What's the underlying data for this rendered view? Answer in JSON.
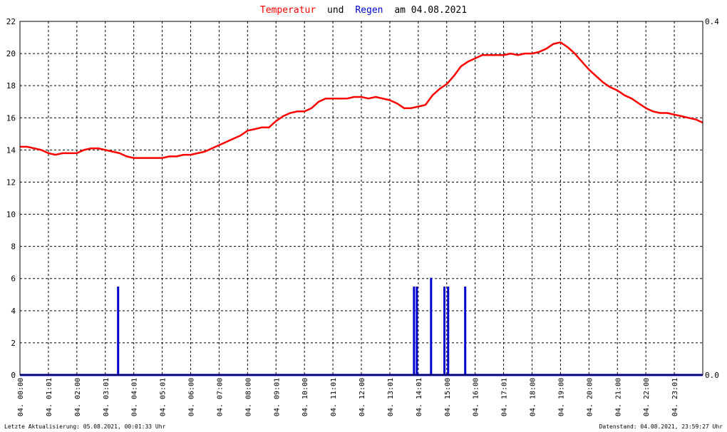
{
  "chart_data": {
    "type": "line",
    "title_parts": [
      {
        "text": "Temperatur",
        "color": "#ff0000"
      },
      {
        "text": "und",
        "color": "#000000"
      },
      {
        "text": "Regen",
        "color": "#0000cc"
      },
      {
        "text": "am 04.08.2021",
        "color": "#000000"
      }
    ],
    "y_left": {
      "min": 0,
      "max": 22,
      "ticks": [
        "0",
        "2",
        "4",
        "6",
        "8",
        "10",
        "12",
        "14",
        "16",
        "18",
        "20",
        "22"
      ]
    },
    "y_right": {
      "min": 0,
      "max": 0.4,
      "ticks": [
        "0.0",
        "0.4"
      ]
    },
    "x_range_hours": [
      0,
      24
    ],
    "x_tick_labels": [
      "04. 00:00",
      "04. 01:01",
      "04. 02:00",
      "04. 03:01",
      "04. 04:01",
      "04. 05:01",
      "04. 06:00",
      "04. 07:00",
      "04. 08:00",
      "04. 09:01",
      "04. 10:00",
      "04. 11:01",
      "04. 12:00",
      "04. 13:01",
      "04. 14:01",
      "04. 15:00",
      "04. 16:00",
      "04. 17:01",
      "04. 18:00",
      "04. 19:00",
      "04. 20:00",
      "04. 21:00",
      "04. 22:00",
      "04. 23:01"
    ],
    "grid": true,
    "series": [
      {
        "name": "Temperatur",
        "axis": "left",
        "color": "#ff0000",
        "x": [
          0.0,
          0.25,
          0.5,
          0.75,
          1.0,
          1.25,
          1.5,
          1.75,
          2.0,
          2.25,
          2.5,
          2.75,
          3.0,
          3.25,
          3.5,
          3.75,
          4.0,
          4.25,
          4.5,
          4.75,
          5.0,
          5.25,
          5.5,
          5.75,
          6.0,
          6.25,
          6.5,
          6.75,
          7.0,
          7.25,
          7.5,
          7.75,
          8.0,
          8.25,
          8.5,
          8.75,
          9.0,
          9.25,
          9.5,
          9.75,
          10.0,
          10.25,
          10.5,
          10.75,
          11.0,
          11.25,
          11.5,
          11.75,
          12.0,
          12.25,
          12.5,
          12.75,
          13.0,
          13.25,
          13.5,
          13.75,
          14.0,
          14.25,
          14.5,
          14.75,
          15.0,
          15.25,
          15.5,
          15.75,
          16.0,
          16.25,
          16.5,
          16.75,
          17.0,
          17.25,
          17.5,
          17.75,
          18.0,
          18.25,
          18.5,
          18.75,
          19.0,
          19.25,
          19.5,
          19.75,
          20.0,
          20.25,
          20.5,
          20.75,
          21.0,
          21.25,
          21.5,
          21.75,
          22.0,
          22.25,
          22.5,
          22.75,
          23.0,
          23.25,
          23.5,
          23.75,
          24.0
        ],
        "values": [
          14.2,
          14.2,
          14.1,
          14.0,
          13.8,
          13.7,
          13.8,
          13.8,
          13.8,
          14.0,
          14.1,
          14.1,
          14.0,
          13.9,
          13.8,
          13.6,
          13.5,
          13.5,
          13.5,
          13.5,
          13.5,
          13.6,
          13.6,
          13.7,
          13.7,
          13.8,
          13.9,
          14.1,
          14.3,
          14.5,
          14.7,
          14.9,
          15.2,
          15.3,
          15.4,
          15.4,
          15.8,
          16.1,
          16.3,
          16.4,
          16.4,
          16.6,
          17.0,
          17.2,
          17.2,
          17.2,
          17.2,
          17.3,
          17.3,
          17.2,
          17.3,
          17.2,
          17.1,
          16.9,
          16.6,
          16.6,
          16.7,
          16.8,
          17.4,
          17.8,
          18.1,
          18.6,
          19.2,
          19.5,
          19.7,
          19.9,
          19.9,
          19.9,
          19.9,
          20.0,
          19.9,
          20.0,
          20.0,
          20.1,
          20.3,
          20.6,
          20.7,
          20.4,
          20.0,
          19.5,
          19.0,
          18.6,
          18.2,
          17.9,
          17.7,
          17.4,
          17.2,
          16.9,
          16.6,
          16.4,
          16.3,
          16.3,
          16.2,
          16.1,
          16.0,
          15.9,
          15.7
        ]
      },
      {
        "name": "Regen",
        "axis": "right",
        "color": "#0000cc",
        "bars": [
          {
            "x": 3.45,
            "value": 0.1
          },
          {
            "x": 13.85,
            "value": 0.1
          },
          {
            "x": 13.95,
            "value": 0.1
          },
          {
            "x": 14.45,
            "value": 0.11
          },
          {
            "x": 14.92,
            "value": 0.1
          },
          {
            "x": 15.05,
            "value": 0.1
          },
          {
            "x": 15.65,
            "value": 0.1
          }
        ]
      }
    ]
  },
  "footer": {
    "left": "Letzte Aktualisierung: 05.08.2021, 00:01:33 Uhr",
    "right": "Datenstand: 04.08.2021, 23:59:27 Uhr"
  }
}
